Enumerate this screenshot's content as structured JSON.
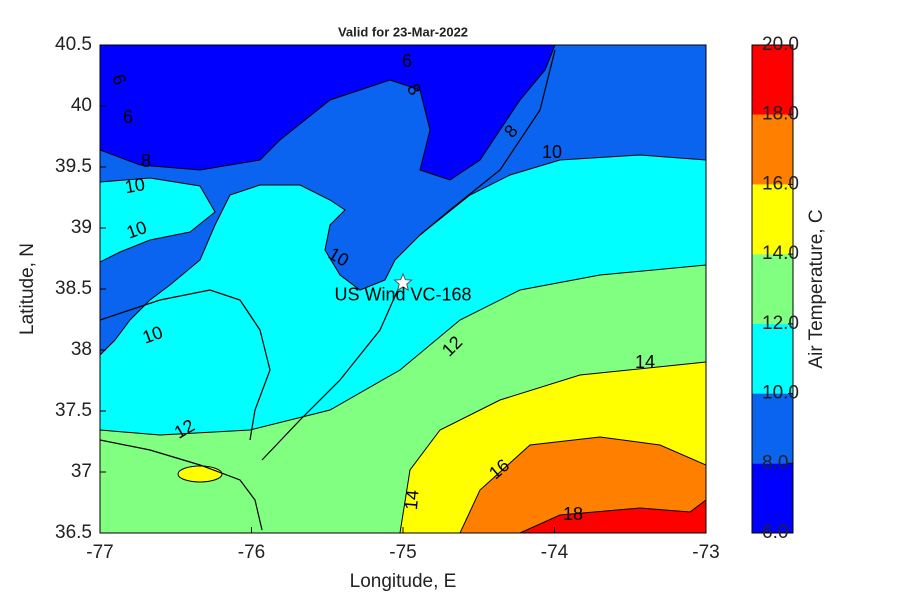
{
  "chart_data": {
    "type": "contour-map",
    "title": "Valid for 23-Mar-2022",
    "xlabel": "Longitude, E",
    "ylabel": "Latitude, N",
    "xlim": [
      -77,
      -73
    ],
    "ylim": [
      36.5,
      40.5
    ],
    "xticks": [
      -77,
      -76,
      -75,
      -74,
      -73
    ],
    "yticks": [
      36.5,
      37,
      37.5,
      38,
      38.5,
      39,
      39.5,
      40,
      40.5
    ],
    "colorbar": {
      "label": "Air Temperature, C",
      "clim": [
        6,
        20
      ],
      "ticks": [
        {
          "value": 6,
          "label": "6.0"
        },
        {
          "value": 8,
          "label": "8.0"
        },
        {
          "value": 10,
          "label": "10.0"
        },
        {
          "value": 12,
          "label": "12.0"
        },
        {
          "value": 14,
          "label": "14.0"
        },
        {
          "value": 16,
          "label": "16.0"
        },
        {
          "value": 18,
          "label": "18.0"
        },
        {
          "value": 20,
          "label": "20.0"
        }
      ],
      "colors": [
        "#0000ff",
        "#0a64f0",
        "#00ffff",
        "#80ff80",
        "#ffff00",
        "#ff8000",
        "#ff0000"
      ]
    },
    "contour_labels": [
      6,
      6,
      6,
      8,
      8,
      8,
      10,
      10,
      10,
      10,
      10,
      12,
      12,
      14,
      14,
      16,
      18
    ],
    "station": {
      "name": "US Wind VC-168",
      "lon": -75,
      "lat": 38.55
    }
  }
}
